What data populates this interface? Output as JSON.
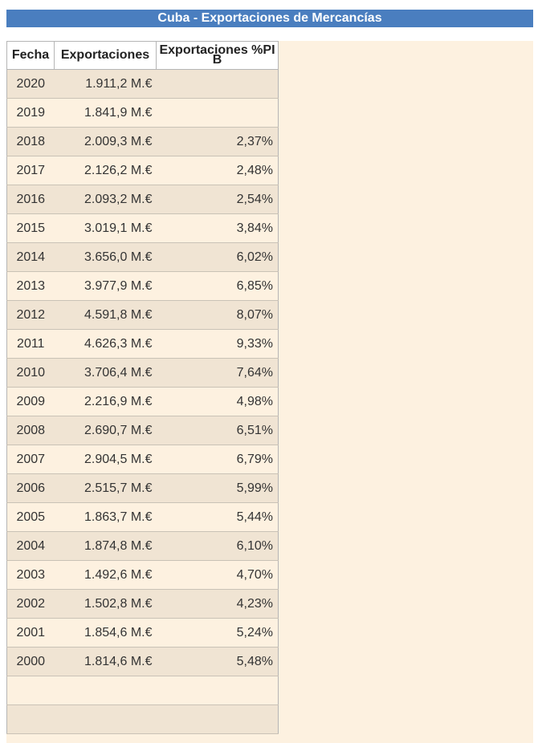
{
  "title": "Cuba - Exportaciones de Mercancías",
  "table": {
    "headers": [
      "Fecha",
      "Exportaciones",
      "Exportaciones %PIB"
    ],
    "rows": [
      {
        "year": "2020",
        "exports": "1.911,2 M.€",
        "pib": ""
      },
      {
        "year": "2019",
        "exports": "1.841,9 M.€",
        "pib": ""
      },
      {
        "year": "2018",
        "exports": "2.009,3 M.€",
        "pib": "2,37%"
      },
      {
        "year": "2017",
        "exports": "2.126,2 M.€",
        "pib": "2,48%"
      },
      {
        "year": "2016",
        "exports": "2.093,2 M.€",
        "pib": "2,54%"
      },
      {
        "year": "2015",
        "exports": "3.019,1 M.€",
        "pib": "3,84%"
      },
      {
        "year": "2014",
        "exports": "3.656,0 M.€",
        "pib": "6,02%"
      },
      {
        "year": "2013",
        "exports": "3.977,9 M.€",
        "pib": "6,85%"
      },
      {
        "year": "2012",
        "exports": "4.591,8 M.€",
        "pib": "8,07%"
      },
      {
        "year": "2011",
        "exports": "4.626,3 M.€",
        "pib": "9,33%"
      },
      {
        "year": "2010",
        "exports": "3.706,4 M.€",
        "pib": "7,64%"
      },
      {
        "year": "2009",
        "exports": "2.216,9 M.€",
        "pib": "4,98%"
      },
      {
        "year": "2008",
        "exports": "2.690,7 M.€",
        "pib": "6,51%"
      },
      {
        "year": "2007",
        "exports": "2.904,5 M.€",
        "pib": "6,79%"
      },
      {
        "year": "2006",
        "exports": "2.515,7 M.€",
        "pib": "5,99%"
      },
      {
        "year": "2005",
        "exports": "1.863,7 M.€",
        "pib": "5,44%"
      },
      {
        "year": "2004",
        "exports": "1.874,8 M.€",
        "pib": "6,10%"
      },
      {
        "year": "2003",
        "exports": "1.492,6 M.€",
        "pib": "4,70%"
      },
      {
        "year": "2002",
        "exports": "1.502,8 M.€",
        "pib": "4,23%"
      },
      {
        "year": "2001",
        "exports": "1.854,6 M.€",
        "pib": "5,24%"
      },
      {
        "year": "2000",
        "exports": "1.814,6 M.€",
        "pib": "5,48%"
      },
      {
        "year": "",
        "exports": "",
        "pib": ""
      },
      {
        "year": "",
        "exports": "",
        "pib": ""
      }
    ]
  },
  "colors": {
    "title_background": "#4a7ebf",
    "panel_background": "#fdf1e0",
    "row_alternate": "#f0e4d3"
  }
}
